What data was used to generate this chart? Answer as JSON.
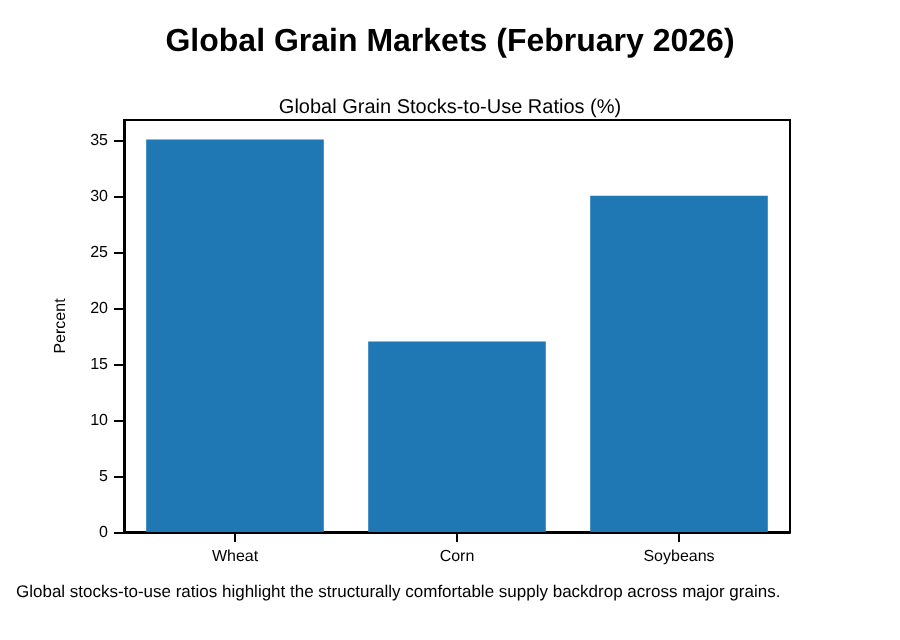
{
  "chart_data": {
    "type": "bar",
    "title": "Global Grain Markets (February 2026)",
    "subtitle": "Global Grain Stocks-to-Use Ratios (%)",
    "ylabel": "Percent",
    "categories": [
      "Wheat",
      "Corn",
      "Soybeans"
    ],
    "values": [
      35,
      17,
      30
    ],
    "color": "#1f77b4",
    "ylim": [
      0,
      36.75
    ],
    "yticks": [
      0,
      5,
      10,
      15,
      20,
      25,
      30,
      35
    ],
    "grid": false,
    "annotations": [
      "Global stocks-to-use ratios highlight the structurally comfortable supply backdrop across major grains."
    ]
  }
}
